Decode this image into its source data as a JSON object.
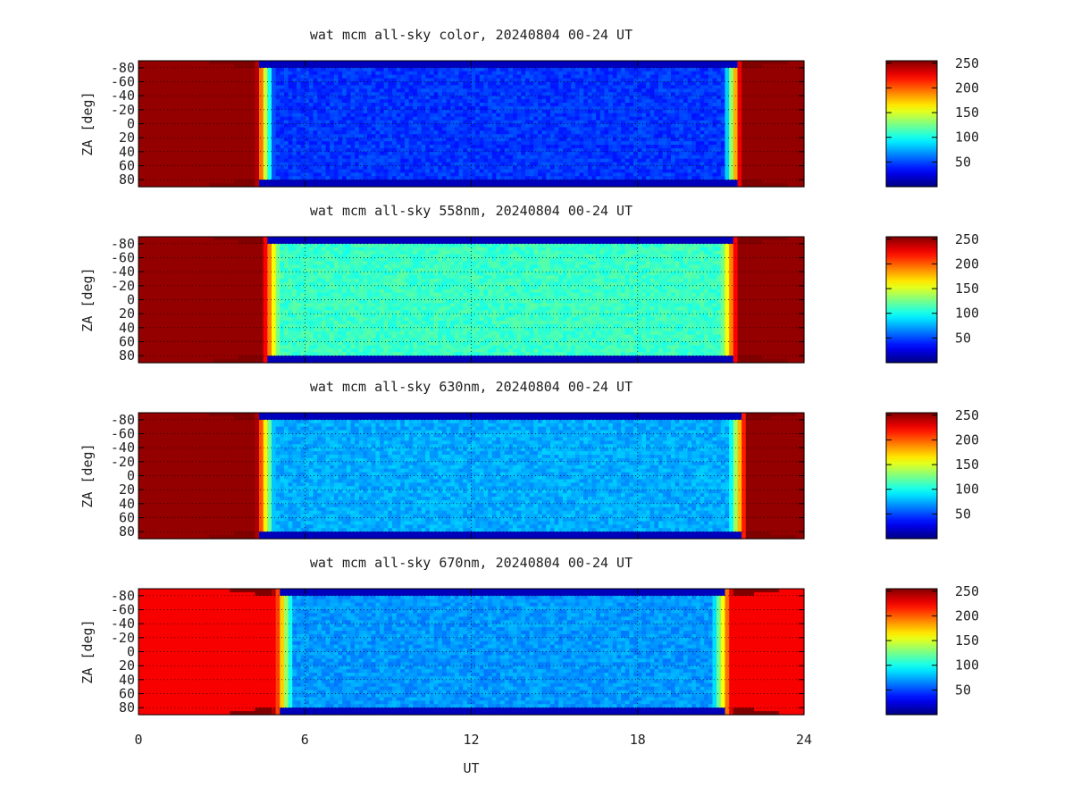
{
  "chart_data": [
    {
      "type": "heatmap",
      "title": "wat mcm all-sky color, 20240804 00-24 UT",
      "ylabel": "ZA [deg]",
      "xlim": [
        0,
        24
      ],
      "ylim": [
        -90,
        90
      ],
      "yticks": [
        "-80",
        "-60",
        "-40",
        "-20",
        "0",
        "20",
        "40",
        "60",
        "80"
      ],
      "colorbar": {
        "range": [
          0,
          255
        ],
        "ticks": [
          "250",
          "200",
          "150",
          "100",
          "50"
        ]
      },
      "sun_intervals": [
        [
          0,
          4.4
        ],
        [
          21.6,
          24
        ]
      ],
      "twilight_edges_ut": [
        4.4,
        21.6
      ],
      "night_level": 45,
      "day_level": 250
    },
    {
      "type": "heatmap",
      "title": "wat mcm all-sky 558nm, 20240804 00-24 UT",
      "ylabel": "ZA [deg]",
      "xlim": [
        0,
        24
      ],
      "ylim": [
        -90,
        90
      ],
      "yticks": [
        "-80",
        "-60",
        "-40",
        "-20",
        "0",
        "20",
        "40",
        "60",
        "80"
      ],
      "colorbar": {
        "range": [
          0,
          255
        ],
        "ticks": [
          "250",
          "200",
          "150",
          "100",
          "50"
        ]
      },
      "sun_intervals": [
        [
          0,
          4.6
        ],
        [
          21.5,
          24
        ]
      ],
      "twilight_edges_ut": [
        4.6,
        21.5
      ],
      "night_level": 110,
      "day_level": 250
    },
    {
      "type": "heatmap",
      "title": "wat mcm all-sky 630nm, 20240804 00-24 UT",
      "ylabel": "ZA [deg]",
      "xlim": [
        0,
        24
      ],
      "ylim": [
        -90,
        90
      ],
      "yticks": [
        "-80",
        "-60",
        "-40",
        "-20",
        "0",
        "20",
        "40",
        "60",
        "80"
      ],
      "colorbar": {
        "range": [
          0,
          255
        ],
        "ticks": [
          "250",
          "200",
          "150",
          "100",
          "50"
        ]
      },
      "sun_intervals": [
        [
          0,
          4.4
        ],
        [
          21.8,
          24
        ]
      ],
      "twilight_edges_ut": [
        4.4,
        21.8
      ],
      "night_level": 75,
      "day_level": 250
    },
    {
      "type": "heatmap",
      "title": "wat mcm all-sky 670nm, 20240804 00-24 UT",
      "ylabel": "ZA [deg]",
      "xlabel": "UT",
      "xticks": [
        "0",
        "6",
        "12",
        "18",
        "24"
      ],
      "xlim": [
        0,
        24
      ],
      "ylim": [
        -90,
        90
      ],
      "yticks": [
        "-80",
        "-60",
        "-40",
        "-20",
        "0",
        "20",
        "40",
        "60",
        "80"
      ],
      "colorbar": {
        "range": [
          0,
          255
        ],
        "ticks": [
          "250",
          "200",
          "150",
          "100",
          "50"
        ]
      },
      "sun_intervals": [
        [
          0,
          5.1
        ],
        [
          21.2,
          24
        ]
      ],
      "twilight_edges_ut": [
        5.1,
        21.2
      ],
      "night_level": 70,
      "day_level": 225
    }
  ]
}
